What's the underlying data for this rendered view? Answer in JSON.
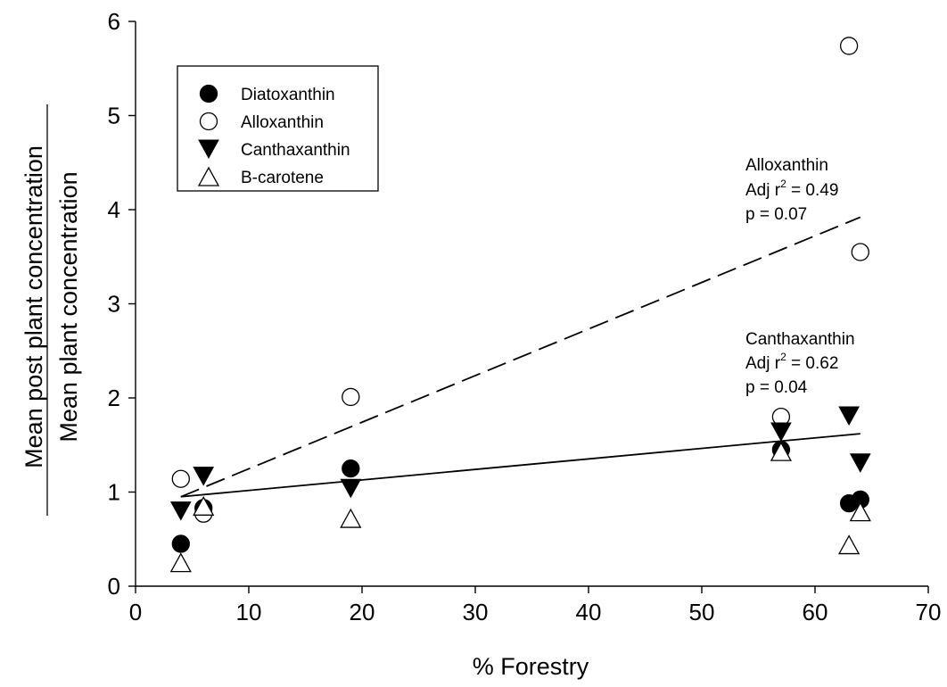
{
  "chart_data": {
    "type": "scatter",
    "xlabel": "% Forestry",
    "ylabel_numerator": "Mean post plant concentration",
    "ylabel_denominator": "Mean plant concentration",
    "xlim": [
      0,
      70
    ],
    "ylim": [
      0,
      6
    ],
    "x_ticks": [
      0,
      10,
      20,
      30,
      40,
      50,
      60,
      70
    ],
    "y_ticks": [
      0,
      1,
      2,
      3,
      4,
      5,
      6
    ],
    "x_tick_labels": [
      "0",
      "10",
      "20",
      "30",
      "40",
      "50",
      "60",
      "70"
    ],
    "y_tick_labels": [
      "0",
      "1",
      "2",
      "3",
      "4",
      "5",
      "6"
    ],
    "grid": false,
    "legend_position": "top-left",
    "series": [
      {
        "name": "Diatoxanthin",
        "marker": "filled-circle",
        "points": [
          [
            4,
            0.45
          ],
          [
            6,
            0.83
          ],
          [
            19,
            1.25
          ],
          [
            57,
            1.45
          ],
          [
            63,
            0.88
          ],
          [
            64,
            0.92
          ]
        ]
      },
      {
        "name": "Alloxanthin",
        "marker": "open-circle",
        "points": [
          [
            4,
            1.14
          ],
          [
            6,
            0.77
          ],
          [
            19,
            2.01
          ],
          [
            57,
            1.8
          ],
          [
            63,
            5.74
          ],
          [
            64,
            3.55
          ]
        ]
      },
      {
        "name": "Canthaxanthin",
        "marker": "filled-triangle-down",
        "points": [
          [
            4,
            0.8
          ],
          [
            6,
            1.17
          ],
          [
            19,
            1.04
          ],
          [
            57,
            1.64
          ],
          [
            63,
            1.81
          ],
          [
            64,
            1.31
          ]
        ]
      },
      {
        "name": "B-carotene",
        "marker": "open-triangle-up",
        "points": [
          [
            4,
            0.25
          ],
          [
            6,
            0.85
          ],
          [
            19,
            0.72
          ],
          [
            57,
            1.43
          ],
          [
            63,
            0.44
          ],
          [
            64,
            0.79
          ]
        ]
      }
    ],
    "regression_lines": [
      {
        "series": "Alloxanthin",
        "style": "dashed",
        "x": [
          4,
          64
        ],
        "y": [
          0.95,
          3.92
        ]
      },
      {
        "series": "Canthaxanthin",
        "style": "solid",
        "x": [
          4,
          64
        ],
        "y": [
          0.95,
          1.62
        ]
      }
    ],
    "annotations": [
      {
        "id": "allo",
        "lines": [
          "Alloxanthin",
          "Adj r",
          "2",
          " = 0.49",
          "p = 0.07"
        ]
      },
      {
        "id": "cantha",
        "lines": [
          "Canthaxanthin",
          "Adj r",
          "2",
          " = 0.62",
          "p = 0.04"
        ]
      }
    ]
  }
}
